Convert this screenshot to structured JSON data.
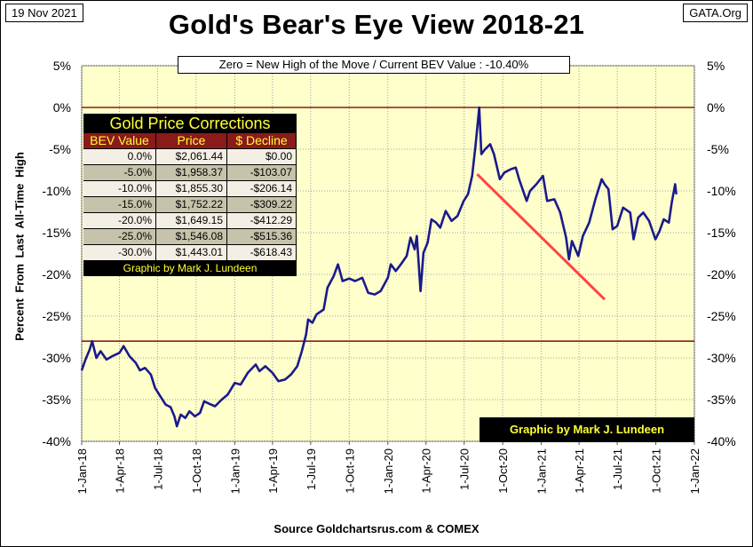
{
  "header": {
    "date": "19 Nov 2021",
    "site": "GATA.Org",
    "title": "Gold's Bear's Eye View 2018-21",
    "subtitle": "Zero = New High of the Move / Current  BEV Value : -10.40%"
  },
  "footer": {
    "source": "Source Goldchartsrus.com & COMEX"
  },
  "credit_box": "Graphic by Mark J. Lundeen",
  "corrections_table": {
    "title": "Gold Price Corrections",
    "headers": [
      "BEV Value",
      "Price",
      "$ Decline"
    ],
    "rows": [
      [
        "0.0%",
        "$2,061.44",
        "$0.00"
      ],
      [
        "-5.0%",
        "$1,958.37",
        "-$103.07"
      ],
      [
        "-10.0%",
        "$1,855.30",
        "-$206.14"
      ],
      [
        "-15.0%",
        "$1,752.22",
        "-$309.22"
      ],
      [
        "-20.0%",
        "$1,649.15",
        "-$412.29"
      ],
      [
        "-25.0%",
        "$1,546.08",
        "-$515.36"
      ],
      [
        "-30.0%",
        "$1,443.01",
        "-$618.43"
      ]
    ],
    "credit": "Graphic by Mark J. Lundeen"
  },
  "colors": {
    "plot_bg": "#ffffcc",
    "series": "#1a1a8c",
    "reference_line": "#8b1a1a",
    "trend_line": "#ff4444"
  },
  "chart_data": {
    "type": "line",
    "title": "Gold's Bear's Eye View 2018-21",
    "ylabel": "Percent  From  Last  All-Time  High",
    "ylim": [
      -40,
      5
    ],
    "yticks": [
      5,
      0,
      -5,
      -10,
      -15,
      -20,
      -25,
      -30,
      -35,
      -40
    ],
    "ytick_labels": [
      "5%",
      "0%",
      "-5%",
      "-10%",
      "-15%",
      "-20%",
      "-25%",
      "-30%",
      "-35%",
      "-40%"
    ],
    "xlim": [
      "2018-01-01",
      "2022-01-01"
    ],
    "xtick_labels": [
      "1-Jan-18",
      "1-Apr-18",
      "1-Jul-18",
      "1-Oct-18",
      "1-Jan-19",
      "1-Apr-19",
      "1-Jul-19",
      "1-Oct-19",
      "1-Jan-20",
      "1-Apr-20",
      "1-Jul-20",
      "1-Oct-20",
      "1-Jan-21",
      "1-Apr-21",
      "1-Jul-21",
      "1-Oct-21",
      "1-Jan-22"
    ],
    "xtick_dates": [
      "2018-01-01",
      "2018-04-01",
      "2018-07-01",
      "2018-10-01",
      "2019-01-01",
      "2019-04-01",
      "2019-07-01",
      "2019-10-01",
      "2020-01-01",
      "2020-04-01",
      "2020-07-01",
      "2020-10-01",
      "2021-01-01",
      "2021-04-01",
      "2021-07-01",
      "2021-10-01",
      "2022-01-01"
    ],
    "reference_lines": [
      0,
      -28
    ],
    "trend_line": {
      "from": [
        "2020-08-01",
        -8
      ],
      "to": [
        "2021-06-01",
        -23
      ]
    },
    "series": [
      {
        "points": [
          [
            "2018-01-01",
            -31.5
          ],
          [
            "2018-01-10",
            -30.2
          ],
          [
            "2018-01-20",
            -29.0
          ],
          [
            "2018-01-26",
            -28.0
          ],
          [
            "2018-02-05",
            -30.0
          ],
          [
            "2018-02-15",
            -29.2
          ],
          [
            "2018-03-01",
            -30.2
          ],
          [
            "2018-03-15",
            -29.8
          ],
          [
            "2018-04-01",
            -29.4
          ],
          [
            "2018-04-11",
            -28.6
          ],
          [
            "2018-04-25",
            -29.8
          ],
          [
            "2018-05-10",
            -30.6
          ],
          [
            "2018-05-20",
            -31.5
          ],
          [
            "2018-06-01",
            -31.2
          ],
          [
            "2018-06-15",
            -32.0
          ],
          [
            "2018-06-25",
            -33.6
          ],
          [
            "2018-07-05",
            -34.4
          ],
          [
            "2018-07-20",
            -35.6
          ],
          [
            "2018-08-01",
            -35.9
          ],
          [
            "2018-08-10",
            -37.0
          ],
          [
            "2018-08-16",
            -38.2
          ],
          [
            "2018-08-25",
            -36.8
          ],
          [
            "2018-09-05",
            -37.2
          ],
          [
            "2018-09-15",
            -36.4
          ],
          [
            "2018-09-28",
            -37.0
          ],
          [
            "2018-10-10",
            -36.6
          ],
          [
            "2018-10-20",
            -35.2
          ],
          [
            "2018-11-01",
            -35.5
          ],
          [
            "2018-11-15",
            -35.8
          ],
          [
            "2018-12-01",
            -35.0
          ],
          [
            "2018-12-15",
            -34.4
          ],
          [
            "2019-01-01",
            -33.0
          ],
          [
            "2019-01-15",
            -33.2
          ],
          [
            "2019-02-01",
            -31.8
          ],
          [
            "2019-02-20",
            -30.8
          ],
          [
            "2019-03-01",
            -31.6
          ],
          [
            "2019-03-15",
            -31.0
          ],
          [
            "2019-04-01",
            -31.8
          ],
          [
            "2019-04-15",
            -32.8
          ],
          [
            "2019-05-01",
            -32.6
          ],
          [
            "2019-05-15",
            -32.0
          ],
          [
            "2019-05-30",
            -31.0
          ],
          [
            "2019-06-10",
            -29.2
          ],
          [
            "2019-06-20",
            -27.2
          ],
          [
            "2019-06-25",
            -25.4
          ],
          [
            "2019-07-05",
            -25.8
          ],
          [
            "2019-07-15",
            -24.8
          ],
          [
            "2019-08-01",
            -24.2
          ],
          [
            "2019-08-10",
            -21.6
          ],
          [
            "2019-08-25",
            -20.2
          ],
          [
            "2019-09-04",
            -18.8
          ],
          [
            "2019-09-15",
            -20.8
          ],
          [
            "2019-10-01",
            -20.5
          ],
          [
            "2019-10-15",
            -20.8
          ],
          [
            "2019-11-01",
            -20.4
          ],
          [
            "2019-11-15",
            -22.2
          ],
          [
            "2019-12-01",
            -22.4
          ],
          [
            "2019-12-15",
            -22.0
          ],
          [
            "2020-01-01",
            -20.4
          ],
          [
            "2020-01-08",
            -18.8
          ],
          [
            "2020-01-20",
            -19.6
          ],
          [
            "2020-02-01",
            -18.8
          ],
          [
            "2020-02-15",
            -17.8
          ],
          [
            "2020-02-24",
            -15.6
          ],
          [
            "2020-03-05",
            -17.0
          ],
          [
            "2020-03-10",
            -15.4
          ],
          [
            "2020-03-19",
            -22.0
          ],
          [
            "2020-03-26",
            -17.4
          ],
          [
            "2020-04-05",
            -16.2
          ],
          [
            "2020-04-14",
            -13.4
          ],
          [
            "2020-04-25",
            -13.8
          ],
          [
            "2020-05-05",
            -14.4
          ],
          [
            "2020-05-18",
            -12.4
          ],
          [
            "2020-06-01",
            -13.6
          ],
          [
            "2020-06-15",
            -13.0
          ],
          [
            "2020-06-30",
            -11.2
          ],
          [
            "2020-07-10",
            -10.4
          ],
          [
            "2020-07-20",
            -8.2
          ],
          [
            "2020-07-28",
            -4.6
          ],
          [
            "2020-08-06",
            0.0
          ],
          [
            "2020-08-11",
            -5.6
          ],
          [
            "2020-08-20",
            -5.0
          ],
          [
            "2020-09-01",
            -4.4
          ],
          [
            "2020-09-10",
            -5.6
          ],
          [
            "2020-09-24",
            -8.6
          ],
          [
            "2020-10-05",
            -7.8
          ],
          [
            "2020-10-20",
            -7.4
          ],
          [
            "2020-11-01",
            -7.2
          ],
          [
            "2020-11-09",
            -8.6
          ],
          [
            "2020-11-27",
            -11.2
          ],
          [
            "2020-12-05",
            -10.0
          ],
          [
            "2020-12-20",
            -9.2
          ],
          [
            "2021-01-05",
            -8.2
          ],
          [
            "2021-01-15",
            -11.2
          ],
          [
            "2021-02-01",
            -11.0
          ],
          [
            "2021-02-15",
            -12.6
          ],
          [
            "2021-03-01",
            -15.6
          ],
          [
            "2021-03-08",
            -18.2
          ],
          [
            "2021-03-15",
            -16.0
          ],
          [
            "2021-03-30",
            -17.8
          ],
          [
            "2021-04-10",
            -15.4
          ],
          [
            "2021-04-25",
            -13.8
          ],
          [
            "2021-05-10",
            -11.0
          ],
          [
            "2021-05-25",
            -8.6
          ],
          [
            "2021-06-01",
            -9.2
          ],
          [
            "2021-06-10",
            -9.8
          ],
          [
            "2021-06-20",
            -14.6
          ],
          [
            "2021-07-01",
            -14.2
          ],
          [
            "2021-07-15",
            -12.0
          ],
          [
            "2021-08-01",
            -12.6
          ],
          [
            "2021-08-09",
            -15.8
          ],
          [
            "2021-08-20",
            -13.2
          ],
          [
            "2021-09-01",
            -12.6
          ],
          [
            "2021-09-15",
            -13.6
          ],
          [
            "2021-09-30",
            -15.8
          ],
          [
            "2021-10-10",
            -14.8
          ],
          [
            "2021-10-20",
            -13.4
          ],
          [
            "2021-11-01",
            -13.8
          ],
          [
            "2021-11-08",
            -11.4
          ],
          [
            "2021-11-16",
            -9.2
          ],
          [
            "2021-11-19",
            -10.4
          ]
        ]
      }
    ]
  }
}
